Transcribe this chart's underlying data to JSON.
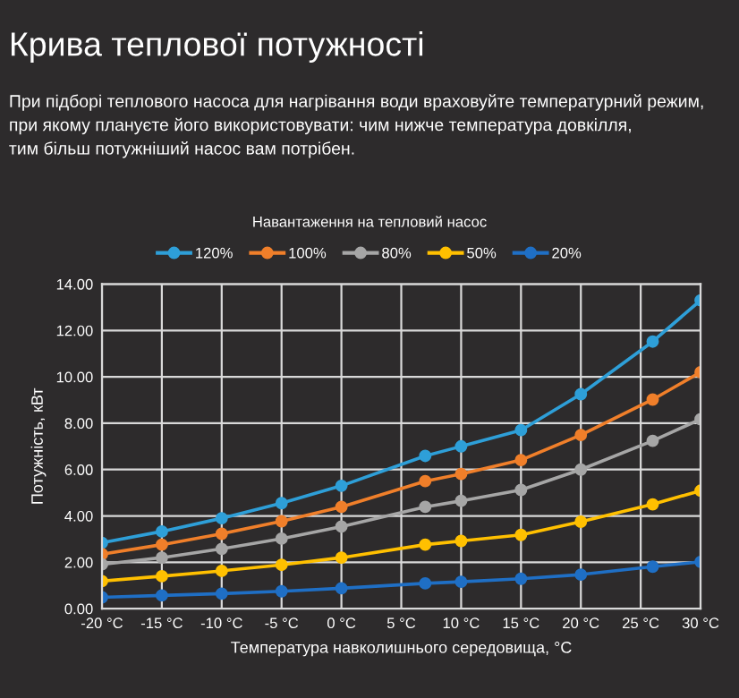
{
  "chart_data": {
    "type": "line",
    "title": "Крива теплової потужності",
    "subtitle": "При підборі теплового насоса для нагрівання води враховуйте температурний режим,\nпри якому плануєте його використовувати: чим нижче температура довкілля,\nтим більш потужніший насос вам потрібен.",
    "legend_title": "Навантаження на тепловий насос",
    "xlabel": "Температура навколишнього середовища, °C",
    "ylabel": "Потужність, кВт",
    "x": [
      -20,
      -15,
      -10,
      -5,
      0,
      7,
      10,
      15,
      20,
      26,
      30
    ],
    "series": [
      {
        "name": "120%",
        "color": "#2e9fd8",
        "values": [
          2.84,
          3.33,
          3.9,
          4.55,
          5.3,
          6.59,
          7.0,
          7.7,
          9.25,
          11.52,
          13.3
        ]
      },
      {
        "name": "100%",
        "color": "#f07f2a",
        "values": [
          2.35,
          2.76,
          3.23,
          3.77,
          4.39,
          5.5,
          5.81,
          6.41,
          7.49,
          9.02,
          10.2
        ]
      },
      {
        "name": "80%",
        "color": "#a6a6a6",
        "values": [
          1.91,
          2.2,
          2.58,
          3.02,
          3.54,
          4.39,
          4.65,
          5.12,
          6.0,
          7.24,
          8.17
        ]
      },
      {
        "name": "50%",
        "color": "#ffc000",
        "values": [
          1.19,
          1.4,
          1.63,
          1.89,
          2.2,
          2.76,
          2.92,
          3.18,
          3.75,
          4.5,
          5.09
        ]
      },
      {
        "name": "20%",
        "color": "#1f6fc5",
        "values": [
          0.49,
          0.57,
          0.65,
          0.75,
          0.88,
          1.09,
          1.16,
          1.29,
          1.47,
          1.81,
          2.02
        ]
      }
    ],
    "xlim": [
      -20,
      30
    ],
    "xticks": [
      {
        "value": -20,
        "label": "-20 °C"
      },
      {
        "value": -15,
        "label": "-15 °C"
      },
      {
        "value": -10,
        "label": "-10 °C"
      },
      {
        "value": -5,
        "label": "-5 °C"
      },
      {
        "value": 0,
        "label": "0 °C"
      },
      {
        "value": 5,
        "label": "5 °C"
      },
      {
        "value": 10,
        "label": "10 °C"
      },
      {
        "value": 15,
        "label": "15 °C"
      },
      {
        "value": 20,
        "label": "20 °C"
      },
      {
        "value": 25,
        "label": "25 °C"
      },
      {
        "value": 30,
        "label": "30 °C"
      }
    ],
    "ylim": [
      0,
      14
    ],
    "yticks": [
      {
        "value": 0,
        "label": "0.00"
      },
      {
        "value": 2,
        "label": "2.00"
      },
      {
        "value": 4,
        "label": "4.00"
      },
      {
        "value": 6,
        "label": "6.00"
      },
      {
        "value": 8,
        "label": "8.00"
      },
      {
        "value": 10,
        "label": "10.00"
      },
      {
        "value": 12,
        "label": "12.00"
      },
      {
        "value": 14,
        "label": "14.00"
      }
    ],
    "grid": true,
    "legend": "top",
    "marker": "circle",
    "line_style": "solid"
  }
}
